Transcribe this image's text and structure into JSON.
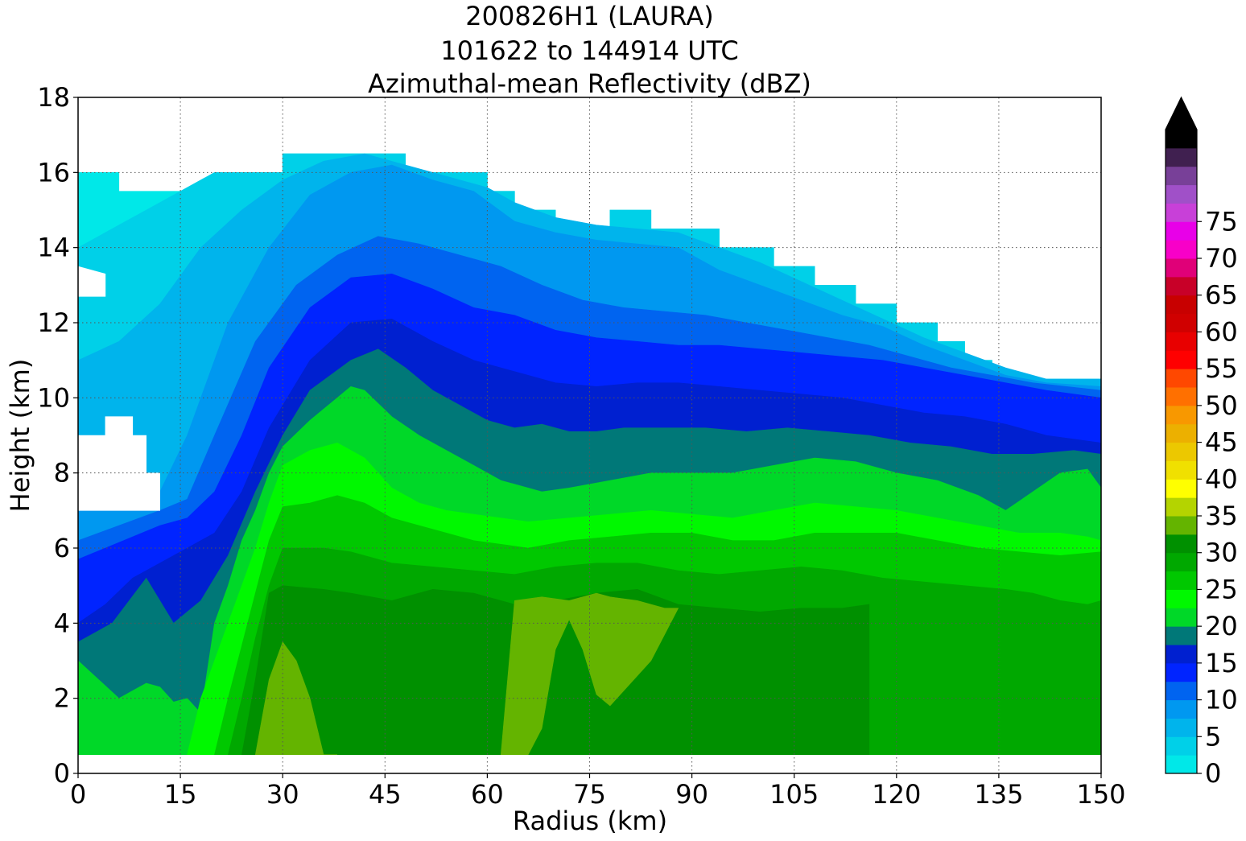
{
  "chart_data": {
    "type": "heatmap",
    "subtype": "filled-contour",
    "title_lines": [
      "200826H1 (LAURA)",
      "101622 to 144914 UTC",
      "Azimuthal-mean Reflectivity (dBZ)"
    ],
    "xlabel": "Radius (km)",
    "ylabel": "Height (km)",
    "xlim": [
      0,
      150
    ],
    "ylim": [
      0,
      18
    ],
    "xticks": [
      0,
      15,
      30,
      45,
      60,
      75,
      90,
      105,
      120,
      135,
      150
    ],
    "yticks": [
      0,
      2,
      4,
      6,
      8,
      10,
      12,
      14,
      16,
      18
    ],
    "grid": true,
    "colorbar": {
      "ticks": [
        0,
        5,
        10,
        15,
        20,
        25,
        30,
        35,
        40,
        45,
        50,
        55,
        60,
        65,
        70,
        75
      ],
      "level_step": 2.5,
      "extend": "max",
      "colors": [
        "#00e8e8",
        "#00d0e8",
        "#00b4ec",
        "#0098f0",
        "#0064f0",
        "#0024ff",
        "#0020d0",
        "#007878",
        "#00d828",
        "#00f800",
        "#00c800",
        "#00a800",
        "#009000",
        "#64b400",
        "#b4d400",
        "#ffff00",
        "#f0e000",
        "#ecc800",
        "#ecb000",
        "#f89800",
        "#ff7000",
        "#ff4800",
        "#ff0000",
        "#e80000",
        "#d00000",
        "#c80000",
        "#c80028",
        "#e00078",
        "#f800c8",
        "#e800e8",
        "#c840d8",
        "#a050c8",
        "#784098",
        "#402050",
        "#000000"
      ]
    },
    "contours": [
      {
        "level": 0,
        "color": "#00e8e8",
        "x": [
          0,
          6,
          6,
          20,
          20,
          30,
          30,
          48,
          48,
          60,
          60,
          64,
          64,
          70,
          70,
          78,
          78,
          84,
          84,
          94,
          94,
          102,
          102,
          108,
          108,
          114,
          114,
          120,
          120,
          126,
          126,
          130,
          130,
          134,
          134,
          138,
          138,
          150,
          150,
          148,
          148,
          146,
          146,
          144,
          144,
          142,
          142,
          140,
          140,
          138,
          138,
          116,
          116,
          0
        ],
        "y": [
          16,
          16,
          15.5,
          15.5,
          16,
          16,
          16.5,
          16.5,
          16,
          16,
          15.5,
          15.5,
          15,
          15,
          14.5,
          14.5,
          15,
          15,
          14.5,
          14.5,
          14,
          14,
          13.5,
          13.5,
          13,
          13,
          12.5,
          12.5,
          12,
          12,
          11.5,
          11.5,
          11,
          11,
          10.5,
          10.5,
          10.5,
          10.5,
          6,
          6,
          4,
          4,
          3.5,
          3.5,
          3,
          3,
          2.5,
          2.5,
          1.5,
          1.5,
          1,
          1,
          0.5,
          0.5
        ]
      },
      {
        "level": 2.5,
        "color": "#00d0e8",
        "x": [
          0,
          5,
          10,
          15,
          20,
          25,
          30,
          30,
          48,
          48,
          60,
          60,
          64,
          64,
          70,
          70,
          78,
          78,
          84,
          84,
          94,
          94,
          102,
          102,
          108,
          108,
          114,
          114,
          120,
          120,
          126,
          126,
          130,
          130,
          134,
          134,
          138,
          138,
          150,
          150,
          0
        ],
        "y": [
          14,
          14.5,
          15,
          15.5,
          16,
          16,
          16,
          16.5,
          16.5,
          16,
          16,
          15.5,
          15.5,
          15,
          15,
          14.5,
          14.5,
          15,
          15,
          14.5,
          14.5,
          14,
          14,
          13.5,
          13.5,
          13,
          13,
          12.5,
          12.5,
          12,
          12,
          11.5,
          11.5,
          11,
          11,
          10.5,
          10.5,
          10.5,
          10.5,
          0.5,
          0.5
        ]
      },
      {
        "level": 5,
        "color": "#00b4ec",
        "x": [
          0,
          6,
          12,
          18,
          24,
          30,
          36,
          42,
          48,
          54,
          60,
          64,
          70,
          76,
          82,
          88,
          94,
          100,
          106,
          112,
          118,
          124,
          130,
          136,
          142,
          150,
          150,
          0
        ],
        "y": [
          11,
          11.5,
          12.5,
          14,
          15,
          15.8,
          16.3,
          16.5,
          16.2,
          15.9,
          15.6,
          15.2,
          14.8,
          14.6,
          14.5,
          14.4,
          14,
          13.6,
          13.1,
          12.6,
          12.1,
          11.6,
          11.2,
          10.8,
          10.5,
          10.5,
          0.5,
          0.5
        ]
      },
      {
        "level": 7.5,
        "color": "#0098f0",
        "x": [
          0,
          6,
          12,
          16,
          22,
          28,
          34,
          40,
          46,
          52,
          58,
          64,
          70,
          76,
          82,
          88,
          94,
          100,
          106,
          112,
          118,
          124,
          130,
          136,
          142,
          150,
          150,
          0
        ],
        "y": [
          7,
          7,
          7.5,
          9,
          12,
          14,
          15.4,
          16,
          16.2,
          15.8,
          15.5,
          14.7,
          14.4,
          14.2,
          14.1,
          14,
          13.4,
          13,
          12.6,
          12.2,
          11.9,
          11.4,
          11,
          10.6,
          10.4,
          10.3,
          0.5,
          0.5
        ]
      },
      {
        "level": 10,
        "color": "#0064f0",
        "x": [
          0,
          6,
          12,
          16,
          20,
          26,
          32,
          38,
          44,
          50,
          56,
          62,
          68,
          74,
          80,
          86,
          92,
          98,
          104,
          110,
          116,
          122,
          128,
          134,
          140,
          150,
          150,
          0
        ],
        "y": [
          6.2,
          6.6,
          7,
          7.3,
          9,
          11.5,
          13,
          13.8,
          14.3,
          14.1,
          13.8,
          13.5,
          13,
          12.6,
          12.4,
          12.3,
          12.2,
          12,
          11.8,
          11.6,
          11.4,
          11.1,
          10.8,
          10.6,
          10.4,
          10.2,
          0.5,
          0.5
        ]
      },
      {
        "level": 12.5,
        "color": "#0024ff",
        "x": [
          0,
          4,
          8,
          12,
          16,
          20,
          24,
          28,
          34,
          40,
          46,
          52,
          58,
          64,
          70,
          76,
          82,
          88,
          94,
          100,
          106,
          112,
          118,
          124,
          130,
          136,
          142,
          150,
          150,
          0
        ],
        "y": [
          5.7,
          6,
          6.3,
          6.6,
          6.8,
          7.5,
          9,
          10.8,
          12.4,
          13.2,
          13.3,
          12.9,
          12.4,
          12.2,
          11.8,
          11.6,
          11.5,
          11.4,
          11.4,
          11.3,
          11.2,
          11.1,
          11,
          10.8,
          10.6,
          10.4,
          10.2,
          10,
          0.5,
          0.5
        ]
      },
      {
        "level": 15,
        "color": "#0020d0",
        "x": [
          0,
          4,
          8,
          12,
          16,
          20,
          24,
          28,
          34,
          40,
          46,
          52,
          58,
          64,
          70,
          76,
          82,
          88,
          94,
          100,
          106,
          112,
          118,
          124,
          130,
          136,
          142,
          150,
          150,
          0
        ],
        "y": [
          4,
          4.5,
          5.2,
          5.6,
          6,
          6.4,
          7.5,
          9.2,
          11,
          12,
          12.1,
          11.5,
          11,
          10.7,
          10.4,
          10.3,
          10.4,
          10.4,
          10.3,
          10.2,
          10.1,
          10,
          9.8,
          9.6,
          9.5,
          9.3,
          9,
          8.8,
          0.5,
          0.5
        ]
      },
      {
        "level": 17.5,
        "color": "#007878",
        "x": [
          0,
          5,
          10,
          14,
          18,
          22,
          26,
          30,
          34,
          40,
          44,
          48,
          52,
          56,
          60,
          64,
          68,
          72,
          76,
          80,
          86,
          92,
          98,
          104,
          110,
          116,
          122,
          128,
          134,
          140,
          146,
          150,
          150,
          0
        ],
        "y": [
          3.5,
          4,
          5.2,
          4,
          4.6,
          5.8,
          7.5,
          9,
          10.2,
          11,
          11.3,
          10.8,
          10.2,
          9.8,
          9.4,
          9.2,
          9.3,
          9.1,
          9.1,
          9.2,
          9.2,
          9.2,
          9.1,
          9.2,
          9.1,
          9,
          8.8,
          8.7,
          8.5,
          8.5,
          8.6,
          8.5,
          0.5,
          0.5
        ]
      },
      {
        "level": 20,
        "color": "#00d828",
        "x": [
          0,
          3,
          6,
          8,
          10,
          12,
          14,
          16,
          18,
          20,
          22,
          24,
          26,
          28,
          30,
          34,
          38,
          40,
          42,
          46,
          50,
          54,
          58,
          62,
          68,
          72,
          78,
          84,
          90,
          96,
          102,
          108,
          114,
          120,
          126,
          132,
          136,
          140,
          144,
          148,
          150,
          150,
          0
        ],
        "y": [
          3,
          2.5,
          2,
          2.2,
          2.4,
          2.3,
          1.9,
          2,
          1.6,
          4,
          5,
          6.2,
          7,
          8,
          8.7,
          9.4,
          10,
          10.3,
          10.2,
          9.5,
          9,
          8.6,
          8.2,
          7.8,
          7.5,
          7.6,
          7.8,
          8,
          8,
          8,
          8.2,
          8.4,
          8.3,
          8,
          7.8,
          7.4,
          7,
          7.5,
          8,
          8.1,
          7.6,
          0.5,
          0.5
        ]
      },
      {
        "level": 22.5,
        "color": "#00f800",
        "x": [
          16,
          18,
          20,
          22,
          24,
          26,
          28,
          30,
          34,
          38,
          42,
          46,
          50,
          54,
          58,
          62,
          66,
          72,
          78,
          84,
          90,
          96,
          102,
          108,
          114,
          120,
          126,
          132,
          138,
          144,
          148,
          150,
          150,
          16
        ],
        "y": [
          0.5,
          2,
          3,
          4,
          5,
          6,
          7.2,
          8.2,
          8.6,
          8.8,
          8.4,
          7.6,
          7.2,
          7,
          6.9,
          6.8,
          6.7,
          6.8,
          6.9,
          7,
          6.9,
          6.8,
          7,
          7.2,
          7.1,
          7,
          6.8,
          6.6,
          6.4,
          6.4,
          6.3,
          6.2,
          0.5,
          0.5
        ]
      },
      {
        "level": 25,
        "color": "#00c800",
        "x": [
          20,
          22,
          24,
          26,
          28,
          30,
          34,
          38,
          42,
          46,
          50,
          54,
          58,
          62,
          66,
          72,
          78,
          84,
          90,
          96,
          102,
          108,
          114,
          120,
          126,
          132,
          138,
          144,
          150,
          150,
          20
        ],
        "y": [
          0.5,
          2,
          3.4,
          4.8,
          6.2,
          7.1,
          7.2,
          7.4,
          7.2,
          6.8,
          6.6,
          6.4,
          6.2,
          6.1,
          6,
          6.2,
          6.3,
          6.4,
          6.4,
          6.2,
          6.2,
          6.4,
          6.4,
          6.4,
          6.2,
          6,
          5.9,
          5.8,
          5.9,
          0.5,
          0.5
        ]
      },
      {
        "level": 27.5,
        "color": "#00a800",
        "x": [
          22,
          24,
          26,
          28,
          30,
          36,
          40,
          46,
          52,
          58,
          64,
          70,
          76,
          82,
          88,
          94,
          100,
          106,
          112,
          118,
          124,
          130,
          136,
          140,
          144,
          148,
          150,
          150,
          22
        ],
        "y": [
          0.5,
          2,
          3.6,
          5,
          6,
          6,
          5.9,
          5.6,
          5.5,
          5.4,
          5.3,
          5.5,
          5.6,
          5.6,
          5.4,
          5.3,
          5.4,
          5.5,
          5.4,
          5.2,
          5.1,
          5,
          4.9,
          4.8,
          4.6,
          4.5,
          4.6,
          0.5,
          0.5
        ]
      },
      {
        "level": 30,
        "color": "#009000",
        "x": [
          24,
          26,
          28,
          30,
          36,
          40,
          46,
          52,
          58,
          64,
          70,
          76,
          82,
          88,
          94,
          100,
          106,
          112,
          116,
          116,
          24
        ],
        "y": [
          0.5,
          2.5,
          4.8,
          5,
          4.9,
          4.8,
          4.6,
          4.9,
          4.8,
          4.5,
          4.6,
          4.8,
          4.9,
          4.5,
          4.4,
          4.3,
          4.4,
          4.4,
          4.5,
          0.5,
          0.5
        ]
      },
      {
        "level": 32.5,
        "color": "#64b400",
        "x": [
          26,
          28,
          30,
          32,
          34,
          36,
          38,
          26
        ],
        "y": [
          0.5,
          2.5,
          3.5,
          3,
          2,
          0.5,
          0.5,
          0.5
        ]
      },
      {
        "level": 32.5,
        "color": "#64b400",
        "x": [
          62,
          64,
          68,
          72,
          76,
          78,
          82,
          86,
          88,
          84,
          80,
          78,
          76,
          74,
          72,
          70,
          68,
          66,
          64,
          62
        ],
        "y": [
          0.5,
          4.6,
          4.7,
          4.6,
          4.8,
          4.7,
          4.6,
          4.4,
          4.4,
          3,
          2.2,
          1.8,
          2.1,
          3.3,
          4.1,
          3.3,
          1.2,
          0.5,
          0.5,
          0.5
        ]
      }
    ],
    "empty_regions": [
      {
        "x": [
          0,
          4,
          4,
          0
        ],
        "y": [
          13.5,
          13.3,
          12.7,
          12.7
        ]
      },
      {
        "x": [
          0,
          4,
          4,
          8,
          8,
          10,
          10,
          12,
          12,
          0
        ],
        "y": [
          9,
          9,
          9.5,
          9.5,
          9,
          9,
          8,
          8,
          7,
          7
        ]
      }
    ]
  }
}
